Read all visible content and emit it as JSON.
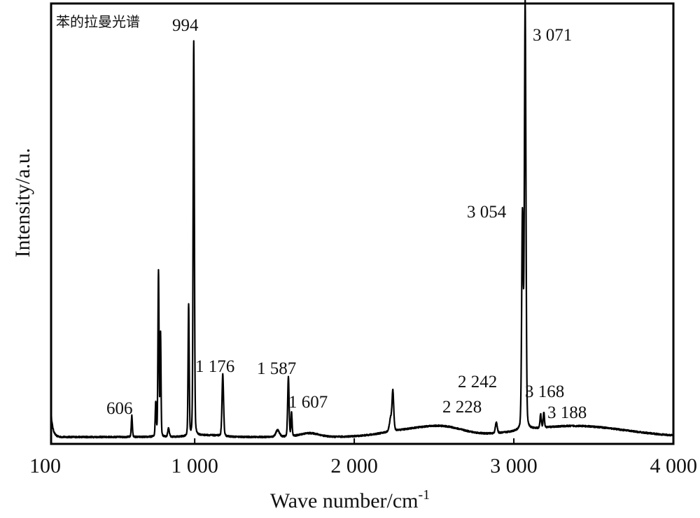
{
  "chart_data": {
    "type": "line",
    "title": "",
    "xlabel": "Wave number/cm",
    "xlabel_superscript": "-1",
    "ylabel": "Intensity/a.u.",
    "xlim": [
      100,
      4000
    ],
    "ylim": [
      0,
      100
    ],
    "grid": false,
    "legend": {
      "position": "top-left",
      "text": "苯的拉曼光谱"
    },
    "x_ticks": [
      {
        "value": 100,
        "label": "100"
      },
      {
        "value": 1000,
        "label": "1 000"
      },
      {
        "value": 2000,
        "label": "2 000"
      },
      {
        "value": 3000,
        "label": "3 000"
      },
      {
        "value": 4000,
        "label": "4 000"
      }
    ],
    "series": [
      {
        "name": "",
        "color": "#000000",
        "baseline": 0.8,
        "edge_rise": {
          "x": 100,
          "y": 5.5,
          "width": 12
        },
        "broad_bands": [
          {
            "x": 2380,
            "y": 1.8,
            "width": 180
          },
          {
            "x": 2580,
            "y": 1.4,
            "width": 120
          },
          {
            "x": 3380,
            "y": 2.6,
            "width": 320
          },
          {
            "x": 1720,
            "y": 0.9,
            "width": 60
          },
          {
            "x": 1080,
            "y": 0.4,
            "width": 80
          }
        ],
        "peaks": [
          {
            "x": 606,
            "y": 5.0,
            "width": 3.5
          },
          {
            "x": 756,
            "y": 8.0,
            "width": 3.5
          },
          {
            "x": 773,
            "y": 39.0,
            "width": 3.5
          },
          {
            "x": 786,
            "y": 24.0,
            "width": 3
          },
          {
            "x": 836,
            "y": 2.0,
            "width": 5
          },
          {
            "x": 962,
            "y": 31.0,
            "width": 3.5
          },
          {
            "x": 994,
            "y": 93.0,
            "width": 4
          },
          {
            "x": 1176,
            "y": 14.5,
            "width": 5
          },
          {
            "x": 1520,
            "y": 1.6,
            "width": 12
          },
          {
            "x": 1587,
            "y": 14.0,
            "width": 4.5
          },
          {
            "x": 1607,
            "y": 5.5,
            "width": 3.5
          },
          {
            "x": 2228,
            "y": 3.0,
            "width": 8
          },
          {
            "x": 2242,
            "y": 9.0,
            "width": 5.5
          },
          {
            "x": 2890,
            "y": 2.5,
            "width": 6
          },
          {
            "x": 3054,
            "y": 50.0,
            "width": 5
          },
          {
            "x": 3071,
            "y": 100.0,
            "width": 5
          },
          {
            "x": 3168,
            "y": 3.2,
            "width": 4
          },
          {
            "x": 3188,
            "y": 3.5,
            "width": 4
          }
        ]
      }
    ],
    "annotations": [
      {
        "id": "p606",
        "text": "606",
        "x": 606,
        "y": 5.0
      },
      {
        "id": "p994",
        "text": "994",
        "x": 994,
        "y": 93.0
      },
      {
        "id": "p1176",
        "text": "1 176",
        "x": 1176,
        "y": 14.5
      },
      {
        "id": "p1587",
        "text": "1 587",
        "x": 1587,
        "y": 14.0
      },
      {
        "id": "p1607",
        "text": "1 607",
        "x": 1607,
        "y": 5.5
      },
      {
        "id": "p2228",
        "text": "2 228",
        "x": 2228,
        "y": 3.0
      },
      {
        "id": "p2242",
        "text": "2 242",
        "x": 2242,
        "y": 9.0
      },
      {
        "id": "p3054",
        "text": "3 054",
        "x": 3054,
        "y": 50.0
      },
      {
        "id": "p3071",
        "text": "3 071",
        "x": 3071,
        "y": 100.0
      },
      {
        "id": "p3168",
        "text": "3 168",
        "x": 3168,
        "y": 3.2
      },
      {
        "id": "p3188",
        "text": "3 188",
        "x": 3188,
        "y": 3.5
      }
    ]
  }
}
